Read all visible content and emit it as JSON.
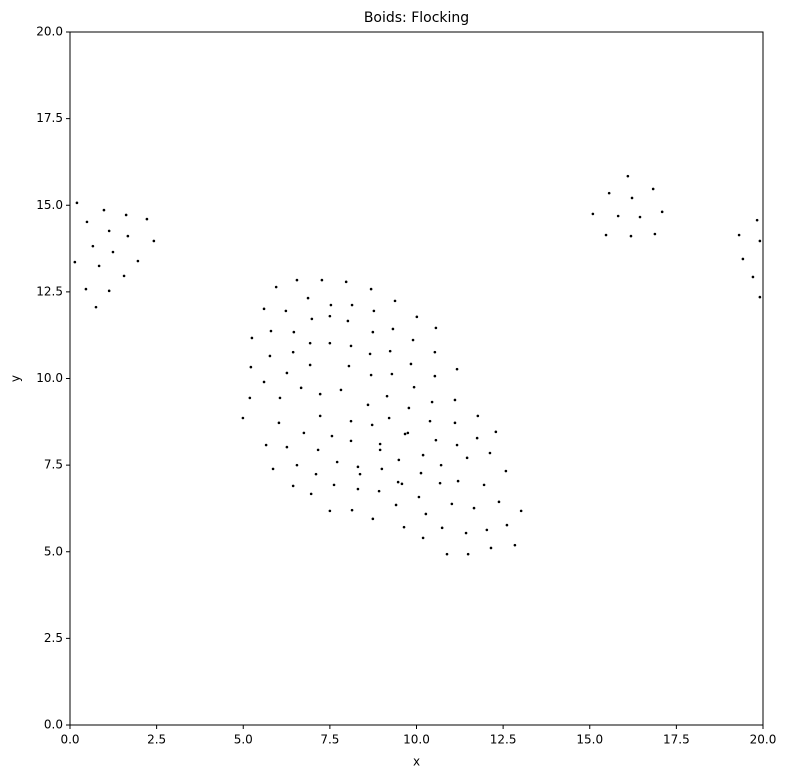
{
  "chart_data": {
    "type": "scatter",
    "title": "Boids: Flocking",
    "xlabel": "x",
    "ylabel": "y",
    "color": "#000000",
    "x": [
      0.2,
      0.49,
      0.98,
      0.14,
      0.66,
      1.13,
      1.67,
      1.62,
      2.22,
      0.84,
      1.24,
      2.42,
      0.46,
      1.56,
      1.96,
      1.13,
      0.75,
      16.1,
      15.56,
      16.83,
      15.09,
      15.82,
      16.22,
      17.09,
      16.45,
      15.47,
      16.19,
      16.88,
      19.83,
      19.91,
      19.31,
      19.42,
      19.71,
      19.91,
      6.55,
      7.27,
      7.97,
      8.69,
      5.95,
      5.6,
      6.23,
      6.87,
      7.53,
      8.14,
      8.77,
      9.38,
      10.01,
      10.56,
      5.8,
      5.25,
      6.46,
      6.98,
      7.5,
      8.02,
      8.74,
      9.32,
      9.9,
      5.22,
      5.77,
      6.44,
      6.93,
      7.5,
      8.11,
      8.66,
      9.24,
      9.84,
      10.53,
      11.17,
      5.6,
      6.26,
      6.67,
      6.93,
      8.05,
      8.69,
      9.29,
      9.93,
      10.53,
      5.19,
      6.06,
      7.22,
      7.82,
      8.6,
      9.15,
      9.78,
      10.39,
      11.11,
      4.99,
      6.03,
      7.22,
      8.11,
      8.72,
      9.21,
      9.75,
      11.11,
      10.45,
      11.77,
      5.66,
      6.26,
      6.75,
      7.56,
      8.11,
      8.95,
      9.67,
      10.56,
      11.17,
      11.75,
      12.29,
      5.86,
      6.55,
      7.16,
      7.71,
      8.31,
      8.95,
      9.49,
      10.19,
      10.71,
      11.46,
      12.12,
      12.58,
      7.1,
      8.37,
      9.0,
      9.58,
      10.13,
      10.68,
      11.2,
      11.95,
      6.44,
      6.96,
      7.62,
      8.31,
      8.92,
      9.47,
      10.07,
      11.66,
      12.38,
      7.5,
      8.14,
      8.74,
      9.41,
      10.27,
      11.02,
      11.43,
      12.03,
      12.61,
      9.64,
      10.19,
      10.74,
      10.88,
      11.49,
      12.15,
      12.84,
      13.02
    ],
    "values": [
      15.07,
      14.52,
      14.86,
      13.36,
      13.82,
      14.26,
      14.11,
      14.72,
      14.6,
      13.25,
      13.65,
      13.97,
      12.58,
      12.96,
      13.39,
      12.53,
      12.06,
      15.84,
      15.35,
      15.47,
      14.75,
      14.69,
      15.21,
      14.81,
      14.66,
      14.14,
      14.11,
      14.17,
      14.57,
      13.97,
      14.14,
      13.45,
      12.93,
      12.35,
      12.84,
      12.84,
      12.79,
      12.58,
      12.64,
      12.01,
      11.95,
      12.32,
      12.12,
      12.12,
      11.95,
      12.24,
      11.78,
      11.46,
      11.37,
      11.17,
      11.34,
      11.72,
      11.8,
      11.66,
      11.34,
      11.43,
      11.11,
      10.33,
      10.65,
      10.76,
      11.02,
      11.02,
      10.94,
      10.71,
      10.79,
      10.42,
      10.76,
      10.27,
      9.9,
      10.16,
      9.73,
      10.39,
      10.36,
      10.1,
      10.13,
      9.75,
      10.07,
      9.44,
      9.44,
      9.55,
      9.67,
      9.24,
      9.49,
      9.15,
      8.77,
      9.38,
      8.86,
      8.72,
      8.92,
      8.77,
      8.66,
      8.86,
      8.43,
      8.72,
      9.32,
      8.92,
      8.08,
      8.02,
      8.43,
      8.34,
      8.2,
      8.11,
      8.4,
      8.22,
      8.08,
      8.28,
      8.46,
      7.39,
      7.5,
      7.94,
      7.59,
      7.45,
      7.94,
      7.65,
      7.79,
      7.5,
      7.71,
      7.85,
      7.33,
      7.24,
      7.24,
      7.39,
      6.96,
      7.27,
      6.98,
      7.04,
      6.93,
      6.9,
      6.67,
      6.93,
      6.81,
      6.75,
      7.01,
      6.58,
      6.26,
      6.44,
      6.18,
      6.2,
      5.95,
      6.35,
      6.09,
      6.38,
      5.54,
      5.63,
      5.77,
      5.71,
      5.4,
      5.69,
      4.93,
      4.93,
      5.11,
      5.19,
      6.18
    ],
    "xlim": [
      0,
      20
    ],
    "ylim": [
      0,
      20
    ],
    "xticks": [
      {
        "value": 0,
        "label": "0.0"
      },
      2.5,
      {
        "value": 5,
        "label": "5.0"
      },
      7.5,
      {
        "value": 10,
        "label": "10.0"
      },
      12.5,
      {
        "value": 15,
        "label": "15.0"
      },
      17.5,
      {
        "value": 20,
        "label": "20.0"
      }
    ],
    "yticks": [
      {
        "value": 0,
        "label": "0.0"
      },
      2.5,
      {
        "value": 5,
        "label": "5.0"
      },
      7.5,
      {
        "value": 10,
        "label": "10.0"
      },
      12.5,
      {
        "value": 15,
        "label": "15.0"
      },
      17.5,
      {
        "value": 20,
        "label": "20.0"
      }
    ],
    "grid": false
  }
}
